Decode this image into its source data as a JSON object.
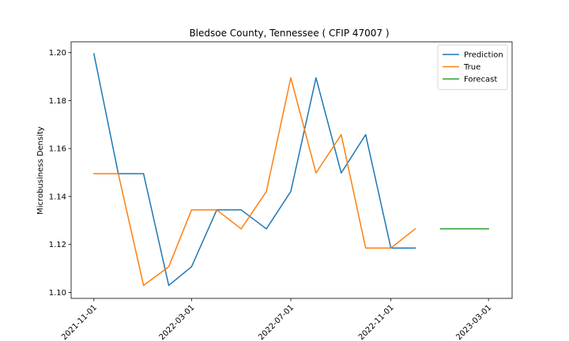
{
  "chart_data": {
    "type": "line",
    "title": "Bledsoe County, Tennessee ( CFIP 47007 )",
    "xlabel": "",
    "ylabel": "Microbusiness Density",
    "x_ticks": [
      "2021-11-01",
      "2022-03-01",
      "2022-07-01",
      "2022-11-01",
      "2023-03-01"
    ],
    "y_ticks": [
      "1.10",
      "1.12",
      "1.14",
      "1.16",
      "1.18",
      "1.20"
    ],
    "ylim": [
      1.0975,
      1.2045
    ],
    "xlim": [
      "2021-10-04",
      "2023-03-30"
    ],
    "legend_position": "top-right",
    "grid": false,
    "series": [
      {
        "name": "Prediction",
        "color": "#1f77b4",
        "x": [
          "2021-11-01",
          "2021-12-01",
          "2022-01-01",
          "2022-02-01",
          "2022-03-01",
          "2022-04-01",
          "2022-05-01",
          "2022-06-01",
          "2022-07-01",
          "2022-08-01",
          "2022-09-01",
          "2022-10-01",
          "2022-11-01",
          "2022-12-01"
        ],
        "y": [
          1.1995,
          1.1495,
          1.1495,
          1.1029,
          1.1107,
          1.1344,
          1.1344,
          1.1265,
          1.1421,
          1.1895,
          1.1498,
          1.1658,
          1.1185,
          1.1185
        ]
      },
      {
        "name": "True",
        "color": "#ff7f0e",
        "x": [
          "2021-11-01",
          "2021-12-01",
          "2022-01-01",
          "2022-02-01",
          "2022-03-01",
          "2022-04-01",
          "2022-05-01",
          "2022-06-01",
          "2022-07-01",
          "2022-08-01",
          "2022-09-01",
          "2022-10-01",
          "2022-11-01",
          "2022-12-01"
        ],
        "y": [
          1.1495,
          1.1495,
          1.1029,
          1.1107,
          1.1344,
          1.1344,
          1.1265,
          1.1421,
          1.1895,
          1.1498,
          1.1658,
          1.1185,
          1.1185,
          1.1265
        ]
      },
      {
        "name": "Forecast",
        "color": "#2ca02c",
        "x": [
          "2023-01-01",
          "2023-02-01",
          "2023-03-01"
        ],
        "y": [
          1.1265,
          1.1265,
          1.1265
        ]
      }
    ]
  }
}
